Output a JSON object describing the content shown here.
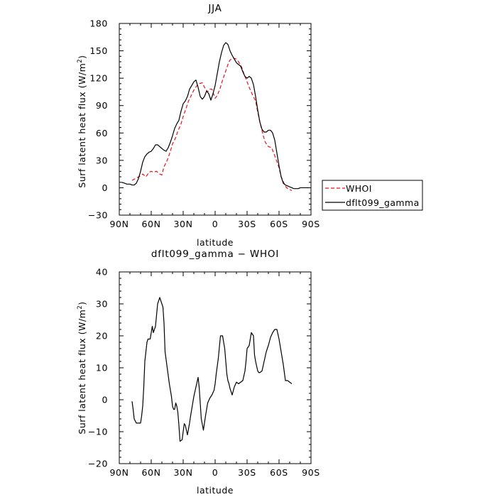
{
  "chart_data": [
    {
      "type": "line",
      "title": "JJA",
      "xlabel": "latitude",
      "ylabel": "Surf latent heat flux (W/m",
      "ylabel_sup": "2",
      "ylabel_close": ")",
      "xlim": [
        90,
        -90
      ],
      "ylim": [
        -30,
        180
      ],
      "x_ticks": [
        90,
        60,
        30,
        0,
        -30,
        -60,
        -90
      ],
      "x_tick_labels": [
        "90N",
        "60N",
        "30N",
        "0",
        "30S",
        "60S",
        "90S"
      ],
      "y_ticks": [
        -30,
        0,
        30,
        60,
        90,
        120,
        150,
        180
      ],
      "y_tick_labels": [
        "−30",
        "0",
        "30",
        "60",
        "90",
        "120",
        "150",
        "180"
      ],
      "legend_position": "right",
      "series": [
        {
          "name": "WHOI",
          "color": "#e8141c",
          "dash": "dashed",
          "x": [
            78,
            75,
            70,
            68,
            65,
            62,
            60,
            58,
            55,
            52,
            50,
            48,
            45,
            42,
            40,
            37,
            35,
            32,
            30,
            27,
            25,
            22,
            20,
            17,
            15,
            12,
            10,
            7,
            5,
            3,
            0,
            -2,
            -5,
            -7,
            -10,
            -12,
            -14,
            -17,
            -20,
            -22,
            -25,
            -27,
            -30,
            -32,
            -35,
            -38,
            -40,
            -42,
            -45,
            -47,
            -50,
            -53,
            -55,
            -57,
            -60,
            -62,
            -65,
            -67,
            -70,
            -72
          ],
          "y": [
            8,
            10,
            13,
            15,
            12,
            17,
            18,
            17,
            18,
            15,
            14,
            23,
            30,
            40,
            48,
            55,
            62,
            70,
            78,
            88,
            95,
            102,
            107,
            112,
            114,
            115,
            110,
            105,
            108,
            108,
            98,
            101,
            110,
            118,
            128,
            135,
            140,
            142,
            141,
            138,
            132,
            125,
            116,
            110,
            102,
            95,
            83,
            72,
            58,
            50,
            45,
            44,
            38,
            32,
            22,
            12,
            4,
            0,
            -2,
            -3
          ]
        },
        {
          "name": "dflt099_gamma",
          "color": "#000000",
          "dash": "solid",
          "x": [
            88,
            85,
            83,
            80,
            78,
            76,
            74,
            72,
            70,
            68,
            66,
            64,
            62,
            60,
            58,
            56,
            54,
            52,
            50,
            48,
            46,
            44,
            42,
            40,
            38,
            36,
            34,
            32,
            30,
            28,
            26,
            24,
            22,
            20,
            18,
            16,
            14,
            12,
            10,
            8,
            6,
            4,
            2,
            0,
            -2,
            -4,
            -6,
            -8,
            -10,
            -12,
            -14,
            -16,
            -18,
            -20,
            -22,
            -24,
            -26,
            -28,
            -30,
            -32,
            -34,
            -36,
            -38,
            -40,
            -42,
            -44,
            -46,
            -48,
            -50,
            -52,
            -54,
            -56,
            -58,
            -60,
            -62,
            -64,
            -66,
            -68,
            -70,
            -72,
            -74,
            -76,
            -78,
            -80,
            -82,
            -85,
            -88
          ],
          "y": [
            6,
            5,
            4,
            4,
            3,
            3,
            5,
            10,
            18,
            28,
            34,
            37,
            39,
            40,
            43,
            47,
            47,
            45,
            43,
            41,
            40,
            44,
            50,
            57,
            65,
            70,
            74,
            84,
            92,
            95,
            100,
            108,
            112,
            116,
            118,
            110,
            100,
            97,
            100,
            106,
            103,
            96,
            103,
            112,
            125,
            138,
            148,
            156,
            159,
            157,
            150,
            145,
            141,
            137,
            135,
            133,
            127,
            122,
            120,
            122,
            120,
            113,
            100,
            85,
            72,
            64,
            61,
            61,
            63,
            63,
            60,
            52,
            38,
            24,
            12,
            5,
            3,
            2,
            1,
            0,
            -1,
            -1,
            -1,
            0,
            0,
            0,
            0
          ]
        }
      ]
    },
    {
      "type": "line",
      "title": "dflt099_gamma − WHOI",
      "xlabel": "latitude",
      "ylabel": "Surf latent heat flux (W/m",
      "ylabel_sup": "2",
      "ylabel_close": ")",
      "xlim": [
        90,
        -90
      ],
      "ylim": [
        -20,
        40
      ],
      "x_ticks": [
        90,
        60,
        30,
        0,
        -30,
        -60,
        -90
      ],
      "x_tick_labels": [
        "90N",
        "60N",
        "30N",
        "0",
        "30S",
        "60S",
        "90S"
      ],
      "y_ticks": [
        -20,
        -10,
        0,
        10,
        20,
        30,
        40
      ],
      "y_tick_labels": [
        "−20",
        "−10",
        "0",
        "10",
        "20",
        "30",
        "40"
      ],
      "series": [
        {
          "name": "",
          "color": "#000000",
          "dash": "solid",
          "x": [
            78,
            77,
            76,
            74,
            72,
            71,
            70,
            69,
            68,
            67,
            66,
            64,
            63,
            62,
            61,
            59,
            58,
            56,
            54,
            52,
            50,
            49,
            48,
            47,
            45,
            43,
            41,
            40,
            39,
            38,
            37,
            36,
            35,
            34,
            33,
            31,
            29,
            28,
            26,
            24,
            23,
            22,
            20,
            18,
            16,
            15,
            13,
            11,
            9,
            7,
            5,
            3,
            1,
            0,
            -1,
            -3,
            -5,
            -7,
            -9,
            -11,
            -12,
            -13,
            -14,
            -16,
            -18,
            -20,
            -22,
            -24,
            -26,
            -28,
            -29,
            -30,
            -32,
            -34,
            -36,
            -37,
            -38,
            -40,
            -41,
            -42,
            -44,
            -46,
            -48,
            -50,
            -52,
            -54,
            -56,
            -57,
            -58,
            -60,
            -62,
            -64,
            -66,
            -68,
            -70,
            -72
          ],
          "y": [
            -0.5,
            -3,
            -6,
            -7.3,
            -7.3,
            -7.3,
            -7.3,
            -5,
            -2,
            4,
            12,
            18,
            19,
            19,
            19,
            23,
            21,
            23,
            30,
            32,
            30,
            29,
            24,
            15,
            10,
            5,
            1,
            -2,
            -3,
            -3,
            -1,
            -2,
            -4,
            -8,
            -13,
            -12.5,
            -7.5,
            -8,
            -11,
            -7.3,
            -5,
            -3,
            1,
            4,
            7,
            4,
            -6,
            -9.5,
            -5,
            -1,
            0.5,
            1.5,
            3,
            5,
            8,
            13,
            20,
            20,
            16,
            8,
            6,
            5,
            3.5,
            1.5,
            4,
            5.5,
            5,
            5.5,
            6,
            9,
            12,
            16,
            17,
            21,
            20,
            14,
            12,
            9,
            8.5,
            8.5,
            9,
            12,
            15,
            17,
            19.5,
            21,
            22,
            22,
            22,
            19,
            15,
            11,
            6,
            6,
            5.5,
            5
          ]
        }
      ]
    }
  ]
}
